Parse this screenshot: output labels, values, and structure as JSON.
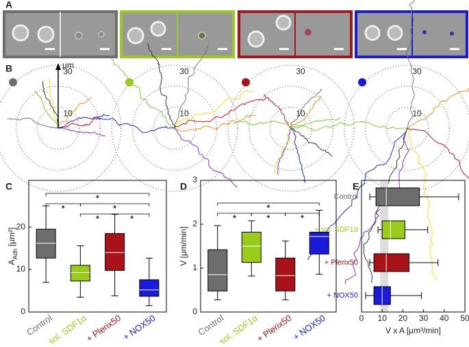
{
  "panel_labels": [
    "A",
    "B",
    "C",
    "D",
    "E"
  ],
  "chart_data": [
    {
      "type": "polar",
      "rticks": [
        10,
        20,
        30
      ],
      "rlabels": [
        30,
        10
      ],
      "unit": "μm",
      "colors": [
        "#6d6d6d",
        "#99cc1a",
        "#a8131a",
        "#1a1adb"
      ]
    },
    {
      "type": "box",
      "categories": [
        "Control",
        "+ sol. SDF1α",
        "+ Plerix50",
        "+ NOX50"
      ],
      "colors": [
        "#6d6d6d",
        "#99cc1a",
        "#a8131a",
        "#1a1adb"
      ],
      "ylabel": [
        "A",
        "Adh",
        " [μm²]"
      ],
      "ylim": [
        0,
        31
      ],
      "yticks": [
        0,
        10,
        20
      ],
      "min": [
        7,
        3.5,
        3.8,
        1.5
      ],
      "q1": [
        12.7,
        7.3,
        9.8,
        3.7
      ],
      "median": [
        16.2,
        9.3,
        14,
        5.2
      ],
      "q3": [
        19.5,
        11,
        18.5,
        7.6
      ],
      "max": [
        25,
        15.6,
        23,
        12.7
      ],
      "tiers": [
        [
          {
            "pair": [
              0,
              3
            ],
            "label": "*"
          }
        ],
        [
          {
            "pair": [
              0,
              1
            ],
            "label": "*"
          },
          {
            "pair": [
              1,
              3
            ],
            "label": "*"
          }
        ],
        [
          {
            "pair": [
              1,
              2
            ],
            "label": "*"
          },
          {
            "pair": [
              2,
              3
            ],
            "label": "*"
          }
        ]
      ]
    },
    {
      "type": "box",
      "categories": [
        "Control",
        "+ sol. SDF1α",
        "+ Plerix50",
        "+ NOX50"
      ],
      "colors": [
        "#6d6d6d",
        "#99cc1a",
        "#a8131a",
        "#1a1adb"
      ],
      "ylabel": [
        "V [μm/min]"
      ],
      "ylim": [
        0,
        3
      ],
      "yticks": [
        0,
        1,
        2,
        3
      ],
      "min": [
        0.28,
        0.82,
        0.28,
        0.86
      ],
      "q1": [
        0.48,
        1.13,
        0.48,
        1.32
      ],
      "median": [
        0.85,
        1.5,
        0.83,
        1.72
      ],
      "q3": [
        1.42,
        1.82,
        1.23,
        1.82
      ],
      "max": [
        1.97,
        2.08,
        1.62,
        2.32
      ],
      "tiers": [
        [
          {
            "pair": [
              0,
              3
            ],
            "label": "*"
          }
        ],
        [
          {
            "pair": [
              0,
              1
            ],
            "label": "*"
          },
          {
            "pair": [
              1,
              2
            ],
            "label": "*"
          },
          {
            "pair": [
              2,
              3
            ],
            "label": "*"
          }
        ]
      ]
    },
    {
      "type": "hbox",
      "categories": [
        "Control",
        "+ sol. SDF1α",
        "+ Plerix50",
        "+ NOX50"
      ],
      "colors": [
        "#6d6d6d",
        "#99cc1a",
        "#a8131a",
        "#1a1adb"
      ],
      "xlabel": "V x A [μm³/min]",
      "xlim": [
        0,
        50
      ],
      "xticks": [
        0,
        10,
        20,
        30,
        40,
        50
      ],
      "band": [
        9,
        13
      ],
      "min": [
        4,
        8,
        4,
        2
      ],
      "q1": [
        7,
        10,
        6,
        6
      ],
      "median": [
        12,
        14,
        12,
        10
      ],
      "q3": [
        28,
        21,
        23,
        14
      ],
      "max": [
        47,
        32,
        37,
        29
      ]
    }
  ]
}
